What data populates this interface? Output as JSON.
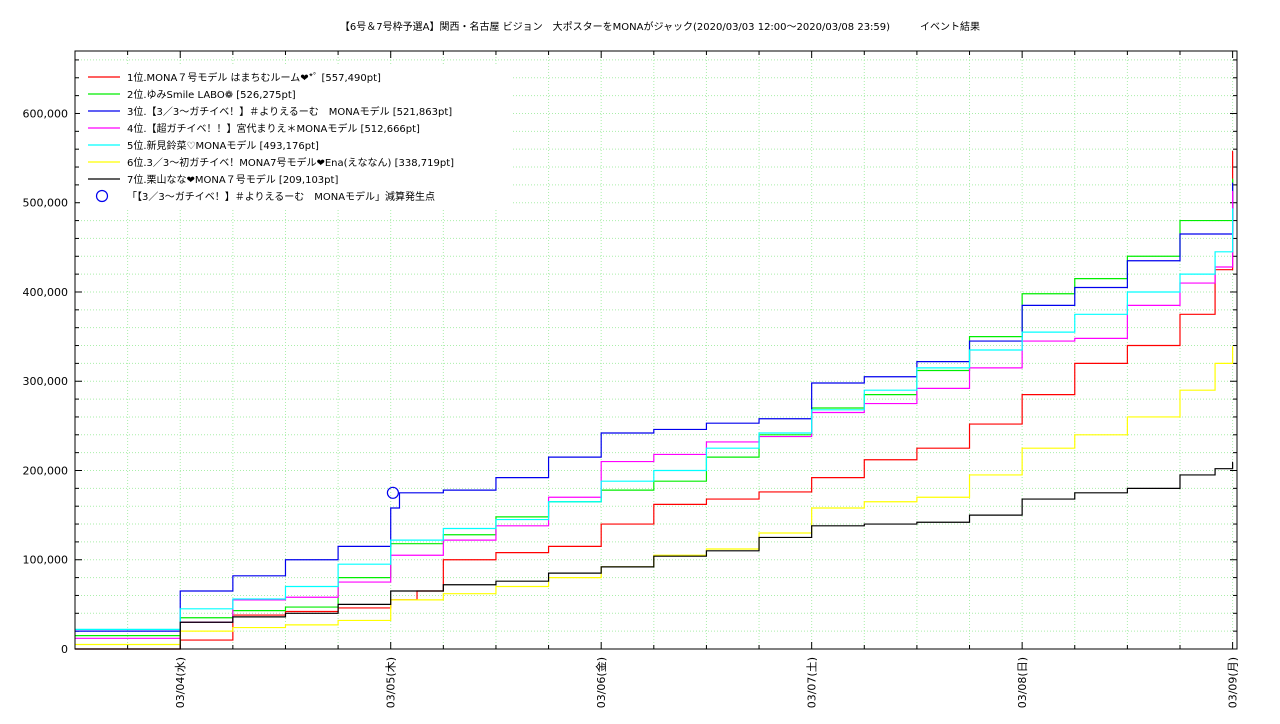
{
  "chart_data": {
    "type": "line",
    "title": "【6号＆7号枠予選A】関西・名古屋 ビジョン　大ポスターをMONAがジャック(2020/03/03 12:00〜2020/03/08 23:59)　　　イベント結果",
    "xlabel": "",
    "ylabel": "",
    "xlim": [
      "2020-03-03 12:00",
      "2020-03-09 00:30"
    ],
    "ylim": [
      0,
      670000
    ],
    "x_ticks": [
      "03/04(水)",
      "03/05(木)",
      "03/06(金)",
      "03/07(土)",
      "03/08(日)",
      "03/09(月)"
    ],
    "y_ticks": [
      "0",
      "100,000",
      "200,000",
      "300,000",
      "400,000",
      "500,000",
      "600,000"
    ],
    "grid": true,
    "legend_position": "top-left",
    "series": [
      {
        "name": "1位.MONA７号モデル はまちむルーム❤*ﾟ [557,490pt]",
        "color": "#ff0000",
        "points": [
          [
            "2020-03-03 12:00",
            0
          ],
          [
            "2020-03-04 00:00",
            10000
          ],
          [
            "2020-03-04 06:00",
            38000
          ],
          [
            "2020-03-04 12:00",
            42000
          ],
          [
            "2020-03-04 18:00",
            46000
          ],
          [
            "2020-03-05 00:00",
            55000
          ],
          [
            "2020-03-05 03:00",
            65000
          ],
          [
            "2020-03-05 06:00",
            100000
          ],
          [
            "2020-03-05 12:00",
            108000
          ],
          [
            "2020-03-05 18:00",
            115000
          ],
          [
            "2020-03-06 00:00",
            140000
          ],
          [
            "2020-03-06 06:00",
            162000
          ],
          [
            "2020-03-06 12:00",
            168000
          ],
          [
            "2020-03-06 18:00",
            176000
          ],
          [
            "2020-03-07 00:00",
            192000
          ],
          [
            "2020-03-07 06:00",
            212000
          ],
          [
            "2020-03-07 12:00",
            225000
          ],
          [
            "2020-03-07 18:00",
            252000
          ],
          [
            "2020-03-08 00:00",
            285000
          ],
          [
            "2020-03-08 06:00",
            320000
          ],
          [
            "2020-03-08 12:00",
            340000
          ],
          [
            "2020-03-08 18:00",
            375000
          ],
          [
            "2020-03-08 22:00",
            425000
          ],
          [
            "2020-03-09 00:00",
            557490
          ]
        ]
      },
      {
        "name": "2位.ゆみSmile LABO❁ [526,275pt]",
        "color": "#00ee00",
        "points": [
          [
            "2020-03-03 12:00",
            15000
          ],
          [
            "2020-03-04 00:00",
            35000
          ],
          [
            "2020-03-04 06:00",
            43000
          ],
          [
            "2020-03-04 12:00",
            47000
          ],
          [
            "2020-03-04 18:00",
            80000
          ],
          [
            "2020-03-05 00:00",
            118000
          ],
          [
            "2020-03-05 06:00",
            128000
          ],
          [
            "2020-03-05 12:00",
            148000
          ],
          [
            "2020-03-05 18:00",
            165000
          ],
          [
            "2020-03-06 00:00",
            178000
          ],
          [
            "2020-03-06 06:00",
            188000
          ],
          [
            "2020-03-06 12:00",
            215000
          ],
          [
            "2020-03-06 18:00",
            240000
          ],
          [
            "2020-03-07 00:00",
            270000
          ],
          [
            "2020-03-07 06:00",
            285000
          ],
          [
            "2020-03-07 12:00",
            312000
          ],
          [
            "2020-03-07 18:00",
            350000
          ],
          [
            "2020-03-08 00:00",
            398000
          ],
          [
            "2020-03-08 06:00",
            415000
          ],
          [
            "2020-03-08 12:00",
            440000
          ],
          [
            "2020-03-08 18:00",
            480000
          ],
          [
            "2020-03-09 00:00",
            526275
          ]
        ]
      },
      {
        "name": "3位.【3／3〜ガチイベ！】＃よりえるーむ　MONAモデル [521,863pt]",
        "color": "#0000ee",
        "points": [
          [
            "2020-03-03 12:00",
            20000
          ],
          [
            "2020-03-04 00:00",
            65000
          ],
          [
            "2020-03-04 06:00",
            82000
          ],
          [
            "2020-03-04 12:00",
            100000
          ],
          [
            "2020-03-04 18:00",
            115000
          ],
          [
            "2020-03-05 00:00",
            158000
          ],
          [
            "2020-03-05 01:00",
            175000
          ],
          [
            "2020-03-05 06:00",
            178000
          ],
          [
            "2020-03-05 12:00",
            192000
          ],
          [
            "2020-03-05 18:00",
            215000
          ],
          [
            "2020-03-06 00:00",
            242000
          ],
          [
            "2020-03-06 06:00",
            246000
          ],
          [
            "2020-03-06 12:00",
            253000
          ],
          [
            "2020-03-06 18:00",
            258000
          ],
          [
            "2020-03-07 00:00",
            298000
          ],
          [
            "2020-03-07 06:00",
            305000
          ],
          [
            "2020-03-07 12:00",
            322000
          ],
          [
            "2020-03-07 18:00",
            345000
          ],
          [
            "2020-03-08 00:00",
            385000
          ],
          [
            "2020-03-08 06:00",
            405000
          ],
          [
            "2020-03-08 12:00",
            435000
          ],
          [
            "2020-03-08 18:00",
            465000
          ],
          [
            "2020-03-09 00:00",
            521863
          ]
        ]
      },
      {
        "name": "4位.【超ガチイベ！！】宮代まりえ＊MONAモデル [512,666pt]",
        "color": "#ff00ff",
        "points": [
          [
            "2020-03-03 12:00",
            12000
          ],
          [
            "2020-03-04 00:00",
            30000
          ],
          [
            "2020-03-04 06:00",
            55000
          ],
          [
            "2020-03-04 12:00",
            58000
          ],
          [
            "2020-03-04 18:00",
            75000
          ],
          [
            "2020-03-05 00:00",
            105000
          ],
          [
            "2020-03-05 06:00",
            122000
          ],
          [
            "2020-03-05 12:00",
            138000
          ],
          [
            "2020-03-05 18:00",
            170000
          ],
          [
            "2020-03-06 00:00",
            210000
          ],
          [
            "2020-03-06 06:00",
            218000
          ],
          [
            "2020-03-06 12:00",
            232000
          ],
          [
            "2020-03-06 18:00",
            238000
          ],
          [
            "2020-03-07 00:00",
            265000
          ],
          [
            "2020-03-07 06:00",
            275000
          ],
          [
            "2020-03-07 12:00",
            292000
          ],
          [
            "2020-03-07 18:00",
            315000
          ],
          [
            "2020-03-08 00:00",
            345000
          ],
          [
            "2020-03-08 06:00",
            348000
          ],
          [
            "2020-03-08 12:00",
            385000
          ],
          [
            "2020-03-08 18:00",
            410000
          ],
          [
            "2020-03-08 22:00",
            428000
          ],
          [
            "2020-03-09 00:00",
            512666
          ]
        ]
      },
      {
        "name": "5位.新見鈴菜♡MONAモデル [493,176pt]",
        "color": "#00ffff",
        "points": [
          [
            "2020-03-03 12:00",
            22000
          ],
          [
            "2020-03-04 00:00",
            45000
          ],
          [
            "2020-03-04 06:00",
            56000
          ],
          [
            "2020-03-04 12:00",
            70000
          ],
          [
            "2020-03-04 18:00",
            95000
          ],
          [
            "2020-03-05 00:00",
            122000
          ],
          [
            "2020-03-05 06:00",
            135000
          ],
          [
            "2020-03-05 12:00",
            145000
          ],
          [
            "2020-03-05 18:00",
            165000
          ],
          [
            "2020-03-06 00:00",
            188000
          ],
          [
            "2020-03-06 06:00",
            200000
          ],
          [
            "2020-03-06 12:00",
            225000
          ],
          [
            "2020-03-06 18:00",
            242000
          ],
          [
            "2020-03-07 00:00",
            268000
          ],
          [
            "2020-03-07 06:00",
            290000
          ],
          [
            "2020-03-07 12:00",
            315000
          ],
          [
            "2020-03-07 18:00",
            335000
          ],
          [
            "2020-03-08 00:00",
            355000
          ],
          [
            "2020-03-08 06:00",
            375000
          ],
          [
            "2020-03-08 12:00",
            400000
          ],
          [
            "2020-03-08 18:00",
            420000
          ],
          [
            "2020-03-08 22:00",
            445000
          ],
          [
            "2020-03-09 00:00",
            493176
          ]
        ]
      },
      {
        "name": "6位.3／3〜初ガチイベ！MONA7号モデル❤Ena(えななん) [338,719pt]",
        "color": "#ffff00",
        "points": [
          [
            "2020-03-03 12:00",
            5000
          ],
          [
            "2020-03-04 00:00",
            20000
          ],
          [
            "2020-03-04 06:00",
            24000
          ],
          [
            "2020-03-04 12:00",
            27000
          ],
          [
            "2020-03-04 18:00",
            32000
          ],
          [
            "2020-03-05 00:00",
            55000
          ],
          [
            "2020-03-05 06:00",
            62000
          ],
          [
            "2020-03-05 12:00",
            70000
          ],
          [
            "2020-03-05 18:00",
            80000
          ],
          [
            "2020-03-06 00:00",
            92000
          ],
          [
            "2020-03-06 06:00",
            105000
          ],
          [
            "2020-03-06 12:00",
            112000
          ],
          [
            "2020-03-06 18:00",
            130000
          ],
          [
            "2020-03-07 00:00",
            158000
          ],
          [
            "2020-03-07 06:00",
            165000
          ],
          [
            "2020-03-07 12:00",
            170000
          ],
          [
            "2020-03-07 18:00",
            195000
          ],
          [
            "2020-03-08 00:00",
            225000
          ],
          [
            "2020-03-08 06:00",
            240000
          ],
          [
            "2020-03-08 12:00",
            260000
          ],
          [
            "2020-03-08 18:00",
            290000
          ],
          [
            "2020-03-08 22:00",
            320000
          ],
          [
            "2020-03-09 00:00",
            338719
          ]
        ]
      },
      {
        "name": "7位.栗山なな❤MONA７号モデル [209,103pt]",
        "color": "#000000",
        "points": [
          [
            "2020-03-03 12:00",
            0
          ],
          [
            "2020-03-04 00:00",
            30000
          ],
          [
            "2020-03-04 06:00",
            36000
          ],
          [
            "2020-03-04 12:00",
            40000
          ],
          [
            "2020-03-04 18:00",
            50000
          ],
          [
            "2020-03-05 00:00",
            65000
          ],
          [
            "2020-03-05 06:00",
            72000
          ],
          [
            "2020-03-05 12:00",
            76000
          ],
          [
            "2020-03-05 18:00",
            85000
          ],
          [
            "2020-03-06 00:00",
            92000
          ],
          [
            "2020-03-06 06:00",
            104000
          ],
          [
            "2020-03-06 12:00",
            110000
          ],
          [
            "2020-03-06 18:00",
            125000
          ],
          [
            "2020-03-07 00:00",
            138000
          ],
          [
            "2020-03-07 06:00",
            140000
          ],
          [
            "2020-03-07 12:00",
            142000
          ],
          [
            "2020-03-07 18:00",
            150000
          ],
          [
            "2020-03-08 00:00",
            168000
          ],
          [
            "2020-03-08 06:00",
            175000
          ],
          [
            "2020-03-08 12:00",
            180000
          ],
          [
            "2020-03-08 18:00",
            195000
          ],
          [
            "2020-03-08 22:00",
            202000
          ],
          [
            "2020-03-09 00:00",
            209103
          ]
        ]
      }
    ],
    "marker": {
      "name": "「【3／3〜ガチイベ！】＃よりえるーむ　MONAモデル」減算発生点",
      "color": "#0000ee",
      "x": "2020-03-05 00:15",
      "y": 175000
    }
  }
}
